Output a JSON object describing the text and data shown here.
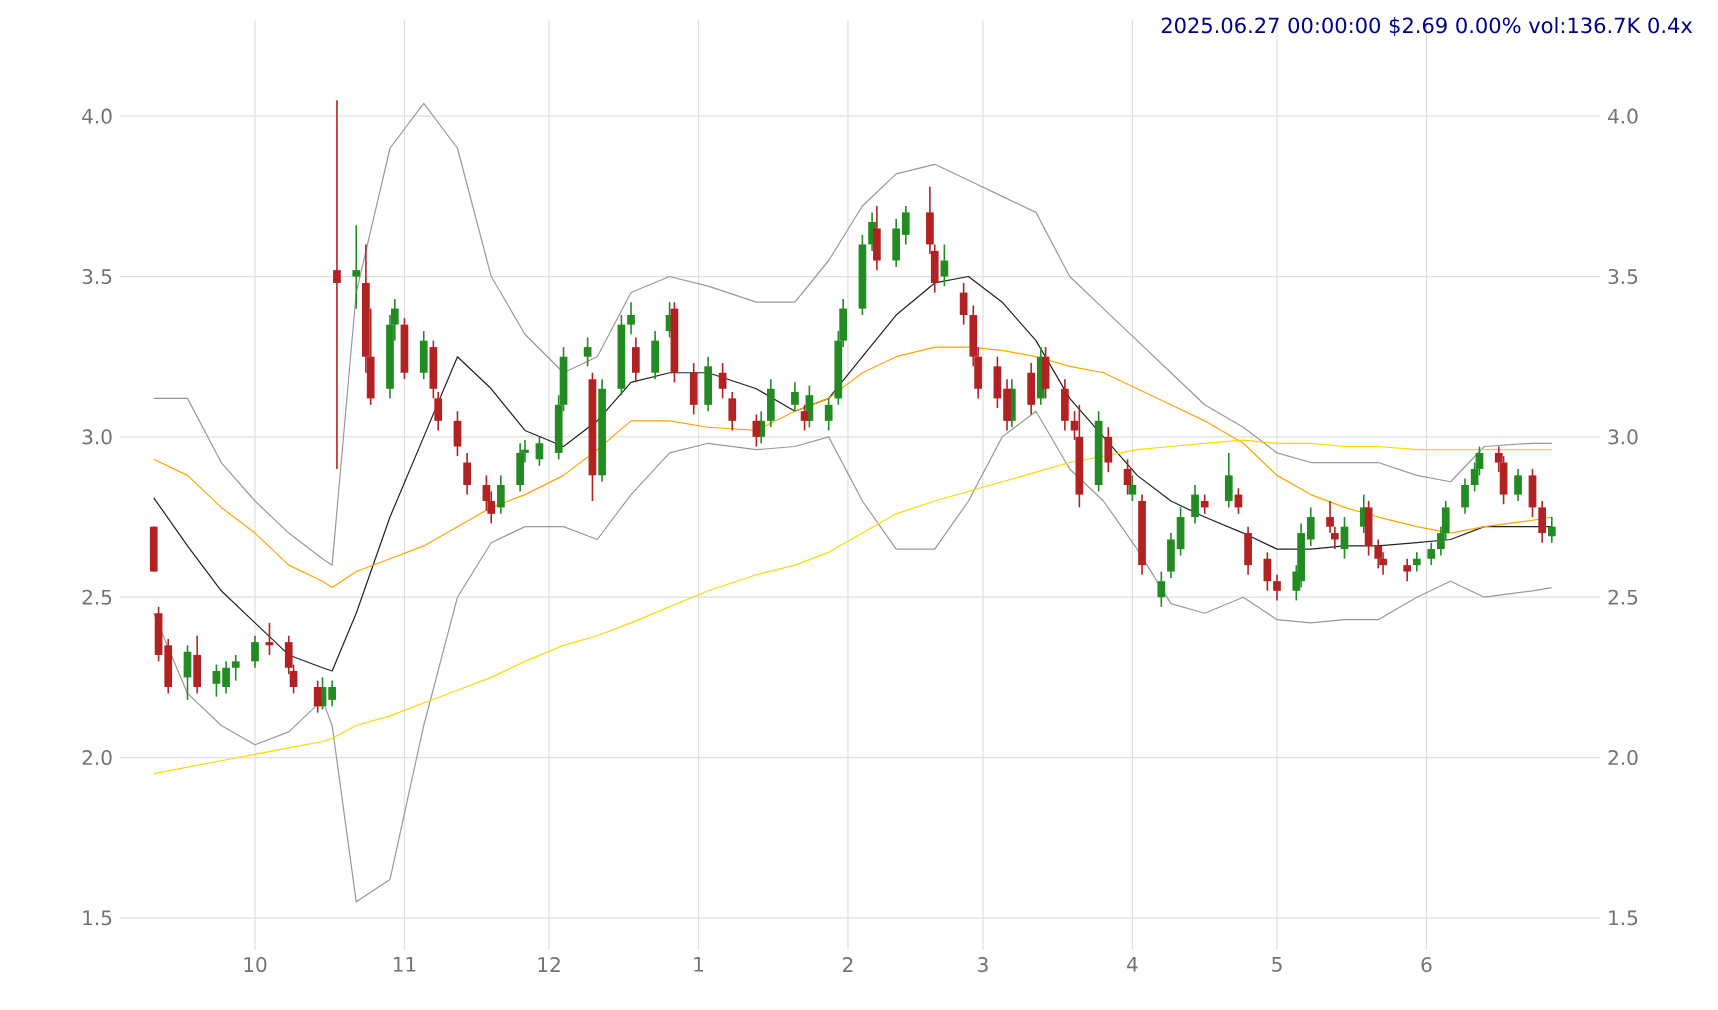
{
  "chart_data": {
    "type": "candlestick",
    "title": "2025.06.27 00:00:00 $2.69 0.00% vol:136.7K 0.4x",
    "xlim": [
      "2024-09-03",
      "2025-07-07"
    ],
    "ylim": [
      1.4,
      4.3
    ],
    "y2lim": [
      1.4,
      4.3
    ],
    "grid": true,
    "xticks": [
      {
        "value": "2024-10-01",
        "label": "10"
      },
      {
        "value": "2024-11-01",
        "label": "11"
      },
      {
        "value": "2024-12-01",
        "label": "12"
      },
      {
        "value": "2025-01-01",
        "label": "1"
      },
      {
        "value": "2025-02-01",
        "label": "2"
      },
      {
        "value": "2025-03-01",
        "label": "3"
      },
      {
        "value": "2025-04-01",
        "label": "4"
      },
      {
        "value": "2025-05-01",
        "label": "5"
      },
      {
        "value": "2025-06-01",
        "label": "6"
      }
    ],
    "yticks": [
      {
        "value": 1.5,
        "label": "1.5"
      },
      {
        "value": 2,
        "label": "2.0"
      },
      {
        "value": 2.5,
        "label": "2.5"
      },
      {
        "value": 3,
        "label": "3.0"
      },
      {
        "value": 3.5,
        "label": "3.5"
      },
      {
        "value": 4,
        "label": "4.0"
      }
    ],
    "y2ticks": [
      {
        "value": 1.5,
        "label": "1.5"
      },
      {
        "value": 2,
        "label": "2.0"
      },
      {
        "value": 2.5,
        "label": "2.5"
      },
      {
        "value": 3,
        "label": "3.0"
      },
      {
        "value": 3.5,
        "label": "3.5"
      },
      {
        "value": 4,
        "label": "4.0"
      }
    ],
    "x": [
      "2024-09-10",
      "2024-09-17",
      "2024-09-24",
      "2024-10-01",
      "2024-10-08",
      "2024-10-15",
      "2024-10-17",
      "2024-10-22",
      "2024-10-29",
      "2024-11-05",
      "2024-11-12",
      "2024-11-19",
      "2024-11-26",
      "2024-12-04",
      "2024-12-11",
      "2024-12-18",
      "2024-12-26",
      "2025-01-03",
      "2025-01-13",
      "2025-01-21",
      "2025-01-28",
      "2025-02-04",
      "2025-02-11",
      "2025-02-19",
      "2025-02-26",
      "2025-03-05",
      "2025-03-12",
      "2025-03-19",
      "2025-03-26",
      "2025-04-02",
      "2025-04-09",
      "2025-04-16",
      "2025-04-24",
      "2025-05-01",
      "2025-05-08",
      "2025-05-15",
      "2025-05-22",
      "2025-05-30",
      "2025-06-06",
      "2025-06-13",
      "2025-06-23",
      "2025-06-27"
    ],
    "series": [
      {
        "type": "line",
        "color": "#999999",
        "values": [
          3.12,
          3.12,
          2.92,
          2.8,
          2.7,
          2.62,
          2.6,
          3.45,
          3.9,
          4.04,
          3.9,
          3.5,
          3.32,
          3.2,
          3.25,
          3.45,
          3.5,
          3.47,
          3.42,
          3.42,
          3.55,
          3.72,
          3.82,
          3.85,
          3.8,
          3.75,
          3.7,
          3.5,
          3.4,
          3.3,
          3.2,
          3.1,
          3.03,
          2.95,
          2.92,
          2.92,
          2.92,
          2.88,
          2.86,
          2.97,
          2.98,
          2.98
        ]
      },
      {
        "type": "line",
        "color": "#999999",
        "values": [
          2.45,
          2.2,
          2.1,
          2.04,
          2.08,
          2.18,
          2.1,
          1.55,
          1.62,
          2.1,
          2.5,
          2.67,
          2.72,
          2.72,
          2.68,
          2.82,
          2.95,
          2.98,
          2.96,
          2.97,
          3.0,
          2.8,
          2.65,
          2.65,
          2.8,
          3.0,
          3.08,
          2.9,
          2.8,
          2.65,
          2.48,
          2.45,
          2.5,
          2.43,
          2.42,
          2.43,
          2.43,
          2.5,
          2.55,
          2.5,
          2.52,
          2.53
        ]
      },
      {
        "type": "line",
        "color": "#222222",
        "values": [
          2.81,
          2.66,
          2.52,
          2.42,
          2.32,
          2.28,
          2.27,
          2.45,
          2.75,
          3.0,
          3.25,
          3.15,
          3.02,
          2.97,
          3.05,
          3.17,
          3.2,
          3.2,
          3.15,
          3.08,
          3.12,
          3.25,
          3.38,
          3.48,
          3.5,
          3.42,
          3.3,
          3.12,
          3.0,
          2.88,
          2.8,
          2.75,
          2.7,
          2.65,
          2.65,
          2.66,
          2.66,
          2.67,
          2.68,
          2.72,
          2.72,
          2.72
        ]
      },
      {
        "type": "line",
        "color": "#ffa500",
        "values": [
          2.93,
          2.88,
          2.78,
          2.7,
          2.6,
          2.55,
          2.53,
          2.58,
          2.62,
          2.66,
          2.72,
          2.78,
          2.82,
          2.88,
          2.96,
          3.05,
          3.05,
          3.03,
          3.02,
          3.08,
          3.12,
          3.2,
          3.25,
          3.28,
          3.28,
          3.27,
          3.25,
          3.22,
          3.2,
          3.15,
          3.1,
          3.05,
          2.98,
          2.88,
          2.82,
          2.78,
          2.75,
          2.72,
          2.7,
          2.72,
          2.74,
          2.75
        ]
      },
      {
        "type": "line",
        "color": "#ffd700",
        "values": [
          1.95,
          1.97,
          1.99,
          2.01,
          2.03,
          2.05,
          2.06,
          2.1,
          2.13,
          2.17,
          2.21,
          2.25,
          2.3,
          2.35,
          2.38,
          2.42,
          2.47,
          2.52,
          2.57,
          2.6,
          2.64,
          2.7,
          2.76,
          2.8,
          2.83,
          2.86,
          2.89,
          2.92,
          2.94,
          2.96,
          2.97,
          2.98,
          2.99,
          2.98,
          2.98,
          2.97,
          2.97,
          2.96,
          2.96,
          2.96,
          2.96,
          2.96
        ]
      },
      {
        "color": "#228b22",
        "x": [
          "2024-09-17",
          "2024-09-23",
          "2024-09-25",
          "2024-09-27",
          "2024-10-01",
          "2024-10-15",
          "2024-10-17",
          "2024-10-22",
          "2024-10-29",
          "2024-10-30",
          "2024-11-05",
          "2024-11-21",
          "2024-11-25",
          "2024-11-26",
          "2024-11-29",
          "2024-12-03",
          "2024-12-04",
          "2024-12-09",
          "2024-12-12",
          "2024-12-16",
          "2024-12-18",
          "2024-12-23",
          "2024-12-26",
          "2025-01-03",
          "2025-01-14",
          "2025-01-16",
          "2025-01-21",
          "2025-01-24",
          "2025-01-28",
          "2025-01-30",
          "2025-01-31",
          "2025-02-04",
          "2025-02-06",
          "2025-02-11",
          "2025-02-13",
          "2025-02-21",
          "2025-03-07",
          "2025-03-13",
          "2025-03-25",
          "2025-04-01",
          "2025-04-07",
          "2025-04-09",
          "2025-04-11",
          "2025-04-14",
          "2025-04-21",
          "2025-05-05",
          "2025-05-06",
          "2025-05-08",
          "2025-05-15",
          "2025-05-19",
          "2025-05-30",
          "2025-06-02",
          "2025-06-04",
          "2025-06-05",
          "2025-06-09",
          "2025-06-11",
          "2025-06-12",
          "2025-06-20",
          "2025-06-27"
        ],
        "ohlc": [
          [
            2.25,
            2.35,
            2.18,
            2.33
          ],
          [
            2.23,
            2.29,
            2.19,
            2.27
          ],
          [
            2.22,
            2.3,
            2.2,
            2.28
          ],
          [
            2.28,
            2.32,
            2.24,
            2.3
          ],
          [
            2.3,
            2.38,
            2.28,
            2.36
          ],
          [
            2.16,
            2.25,
            2.15,
            2.22
          ],
          [
            2.18,
            2.24,
            2.16,
            2.22
          ],
          [
            3.5,
            3.66,
            3.4,
            3.52
          ],
          [
            3.15,
            3.38,
            3.12,
            3.35
          ],
          [
            3.35,
            3.43,
            3.3,
            3.4
          ],
          [
            3.2,
            3.33,
            3.18,
            3.3
          ],
          [
            2.78,
            2.88,
            2.76,
            2.85
          ],
          [
            2.85,
            2.98,
            2.83,
            2.95
          ],
          [
            2.95,
            2.99,
            2.92,
            2.96
          ],
          [
            2.93,
            3.0,
            2.91,
            2.98
          ],
          [
            2.95,
            3.13,
            2.93,
            3.1
          ],
          [
            3.1,
            3.28,
            3.08,
            3.25
          ],
          [
            3.25,
            3.31,
            3.22,
            3.28
          ],
          [
            2.88,
            3.18,
            2.86,
            3.15
          ],
          [
            3.15,
            3.38,
            3.13,
            3.35
          ],
          [
            3.35,
            3.42,
            3.32,
            3.38
          ],
          [
            3.2,
            3.33,
            3.18,
            3.3
          ],
          [
            3.33,
            3.42,
            3.31,
            3.38
          ],
          [
            3.1,
            3.25,
            3.08,
            3.22
          ],
          [
            3.0,
            3.08,
            2.98,
            3.05
          ],
          [
            3.05,
            3.18,
            3.03,
            3.15
          ],
          [
            3.1,
            3.17,
            3.08,
            3.14
          ],
          [
            3.05,
            3.16,
            3.03,
            3.13
          ],
          [
            3.05,
            3.12,
            3.02,
            3.1
          ],
          [
            3.12,
            3.33,
            3.1,
            3.3
          ],
          [
            3.3,
            3.43,
            3.28,
            3.4
          ],
          [
            3.4,
            3.63,
            3.38,
            3.6
          ],
          [
            3.6,
            3.7,
            3.58,
            3.67
          ],
          [
            3.55,
            3.68,
            3.53,
            3.65
          ],
          [
            3.63,
            3.72,
            3.6,
            3.7
          ],
          [
            3.5,
            3.6,
            3.47,
            3.55
          ],
          [
            3.05,
            3.18,
            3.03,
            3.15
          ],
          [
            3.12,
            3.28,
            3.1,
            3.25
          ],
          [
            2.85,
            3.08,
            2.83,
            3.05
          ],
          [
            2.82,
            2.88,
            2.8,
            2.85
          ],
          [
            2.5,
            2.58,
            2.47,
            2.55
          ],
          [
            2.58,
            2.7,
            2.56,
            2.68
          ],
          [
            2.65,
            2.78,
            2.63,
            2.75
          ],
          [
            2.75,
            2.85,
            2.73,
            2.82
          ],
          [
            2.8,
            2.95,
            2.78,
            2.88
          ],
          [
            2.52,
            2.6,
            2.49,
            2.58
          ],
          [
            2.55,
            2.73,
            2.53,
            2.7
          ],
          [
            2.68,
            2.78,
            2.66,
            2.75
          ],
          [
            2.65,
            2.75,
            2.62,
            2.72
          ],
          [
            2.72,
            2.82,
            2.7,
            2.78
          ],
          [
            2.6,
            2.64,
            2.58,
            2.62
          ],
          [
            2.62,
            2.67,
            2.6,
            2.65
          ],
          [
            2.65,
            2.72,
            2.63,
            2.7
          ],
          [
            2.7,
            2.8,
            2.68,
            2.78
          ],
          [
            2.78,
            2.87,
            2.76,
            2.85
          ],
          [
            2.85,
            2.92,
            2.83,
            2.9
          ],
          [
            2.9,
            2.97,
            2.88,
            2.95
          ],
          [
            2.82,
            2.9,
            2.8,
            2.88
          ],
          [
            2.69,
            2.75,
            2.67,
            2.72
          ]
        ]
      },
      {
        "color": "#b22222",
        "x": [
          "2024-09-10",
          "2024-09-11",
          "2024-09-13",
          "2024-09-19",
          "2024-10-04",
          "2024-10-08",
          "2024-10-09",
          "2024-10-14",
          "2024-10-18",
          "2024-10-24",
          "2024-10-25",
          "2024-11-01",
          "2024-11-07",
          "2024-11-08",
          "2024-11-12",
          "2024-11-14",
          "2024-11-18",
          "2024-11-19",
          "2024-12-10",
          "2024-12-19",
          "2024-12-27",
          "2024-12-31",
          "2025-01-06",
          "2025-01-08",
          "2025-01-13",
          "2025-01-23",
          "2025-02-07",
          "2025-02-18",
          "2025-02-19",
          "2025-02-25",
          "2025-02-27",
          "2025-02-28",
          "2025-03-04",
          "2025-03-06",
          "2025-03-11",
          "2025-03-14",
          "2025-03-18",
          "2025-03-20",
          "2025-03-21",
          "2025-03-27",
          "2025-03-31",
          "2025-04-03",
          "2025-04-16",
          "2025-04-23",
          "2025-04-25",
          "2025-04-29",
          "2025-05-01",
          "2025-05-12",
          "2025-05-13",
          "2025-05-20",
          "2025-05-22",
          "2025-05-23",
          "2025-05-28",
          "2025-06-16",
          "2025-06-17",
          "2025-06-23",
          "2025-06-25"
        ],
        "ohlc": [
          [
            2.72,
            2.72,
            2.58,
            2.58
          ],
          [
            2.45,
            2.47,
            2.3,
            2.32
          ],
          [
            2.35,
            2.37,
            2.2,
            2.22
          ],
          [
            2.32,
            2.38,
            2.2,
            2.22
          ],
          [
            2.36,
            2.42,
            2.32,
            2.35
          ],
          [
            2.36,
            2.38,
            2.26,
            2.28
          ],
          [
            2.27,
            2.29,
            2.2,
            2.22
          ],
          [
            2.22,
            2.24,
            2.14,
            2.16
          ],
          [
            3.52,
            4.05,
            2.9,
            3.48
          ],
          [
            3.48,
            3.6,
            3.2,
            3.25
          ],
          [
            3.25,
            3.4,
            3.1,
            3.12
          ],
          [
            3.35,
            3.37,
            3.18,
            3.2
          ],
          [
            3.28,
            3.3,
            3.12,
            3.15
          ],
          [
            3.12,
            3.14,
            3.02,
            3.05
          ],
          [
            3.05,
            3.08,
            2.94,
            2.97
          ],
          [
            2.92,
            2.95,
            2.82,
            2.85
          ],
          [
            2.85,
            2.88,
            2.77,
            2.8
          ],
          [
            2.8,
            2.83,
            2.73,
            2.76
          ],
          [
            3.18,
            3.2,
            2.8,
            2.88
          ],
          [
            3.28,
            3.31,
            3.17,
            3.2
          ],
          [
            3.4,
            3.42,
            3.17,
            3.2
          ],
          [
            3.2,
            3.23,
            3.07,
            3.1
          ],
          [
            3.2,
            3.23,
            3.12,
            3.15
          ],
          [
            3.12,
            3.14,
            3.02,
            3.05
          ],
          [
            3.05,
            3.07,
            2.97,
            3.0
          ],
          [
            3.08,
            3.1,
            3.02,
            3.05
          ],
          [
            3.65,
            3.72,
            3.52,
            3.55
          ],
          [
            3.7,
            3.78,
            3.57,
            3.6
          ],
          [
            3.58,
            3.6,
            3.45,
            3.48
          ],
          [
            3.45,
            3.48,
            3.35,
            3.38
          ],
          [
            3.38,
            3.41,
            3.22,
            3.25
          ],
          [
            3.25,
            3.28,
            3.12,
            3.15
          ],
          [
            3.22,
            3.25,
            3.09,
            3.12
          ],
          [
            3.15,
            3.18,
            3.02,
            3.05
          ],
          [
            3.2,
            3.23,
            3.07,
            3.1
          ],
          [
            3.25,
            3.28,
            3.12,
            3.15
          ],
          [
            3.15,
            3.18,
            3.02,
            3.05
          ],
          [
            3.05,
            3.08,
            2.99,
            3.02
          ],
          [
            3.0,
            3.1,
            2.78,
            2.82
          ],
          [
            3.0,
            3.03,
            2.89,
            2.92
          ],
          [
            2.9,
            2.93,
            2.82,
            2.85
          ],
          [
            2.8,
            2.82,
            2.57,
            2.6
          ],
          [
            2.8,
            2.82,
            2.76,
            2.78
          ],
          [
            2.82,
            2.84,
            2.76,
            2.78
          ],
          [
            2.7,
            2.72,
            2.57,
            2.6
          ],
          [
            2.62,
            2.64,
            2.52,
            2.55
          ],
          [
            2.55,
            2.57,
            2.49,
            2.52
          ],
          [
            2.75,
            2.8,
            2.7,
            2.72
          ],
          [
            2.7,
            2.72,
            2.65,
            2.68
          ],
          [
            2.78,
            2.8,
            2.63,
            2.66
          ],
          [
            2.66,
            2.68,
            2.59,
            2.62
          ],
          [
            2.62,
            2.64,
            2.57,
            2.6
          ],
          [
            2.6,
            2.62,
            2.55,
            2.58
          ],
          [
            2.95,
            2.97,
            2.89,
            2.92
          ],
          [
            2.92,
            2.94,
            2.79,
            2.82
          ],
          [
            2.88,
            2.9,
            2.75,
            2.78
          ],
          [
            2.78,
            2.8,
            2.67,
            2.7
          ]
        ]
      }
    ]
  }
}
